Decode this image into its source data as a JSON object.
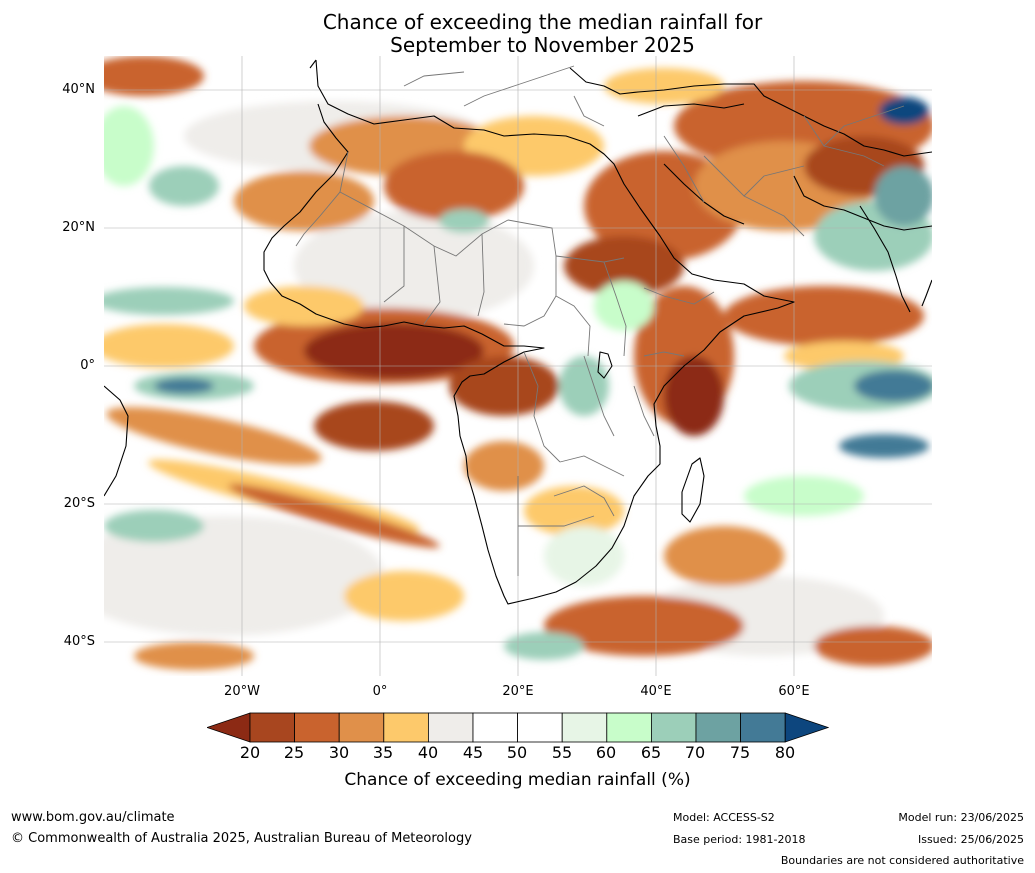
{
  "title": {
    "line1": "Chance of exceeding the median rainfall for",
    "line2": "September to November 2025"
  },
  "map": {
    "region": "Africa",
    "lat_labels": [
      "40°N",
      "20°N",
      "0°",
      "20°S",
      "40°S"
    ],
    "lon_labels": [
      "20°W",
      "0°",
      "20°E",
      "40°E",
      "60°E"
    ],
    "extent": {
      "lon_min": -40,
      "lon_max": 80,
      "lat_min": -45,
      "lat_max": 45
    }
  },
  "colorbar": {
    "ticks": [
      "20",
      "25",
      "30",
      "35",
      "40",
      "45",
      "50",
      "55",
      "60",
      "65",
      "70",
      "75",
      "80"
    ],
    "colors": [
      "#8c2a14",
      "#a8461f",
      "#c9632e",
      "#e0904a",
      "#fdc96b",
      "#efedea",
      "#ffffff",
      "#ffffff",
      "#e7f5e6",
      "#c8fdca",
      "#9ccfb9",
      "#6da2a2",
      "#437a96",
      "#0d467e"
    ],
    "label": "Chance of exceeding median rainfall (%)"
  },
  "footer": {
    "website": "www.bom.gov.au/climate",
    "copyright": "© Commonwealth of Australia 2025, Australian Bureau of Meteorology",
    "model": "Model: ACCESS-S2",
    "base_period": "Base period: 1981-2018",
    "model_run": "Model run: 23/06/2025",
    "issued": "Issued: 25/06/2025",
    "disclaimer": "Boundaries are not considered authoritative"
  }
}
